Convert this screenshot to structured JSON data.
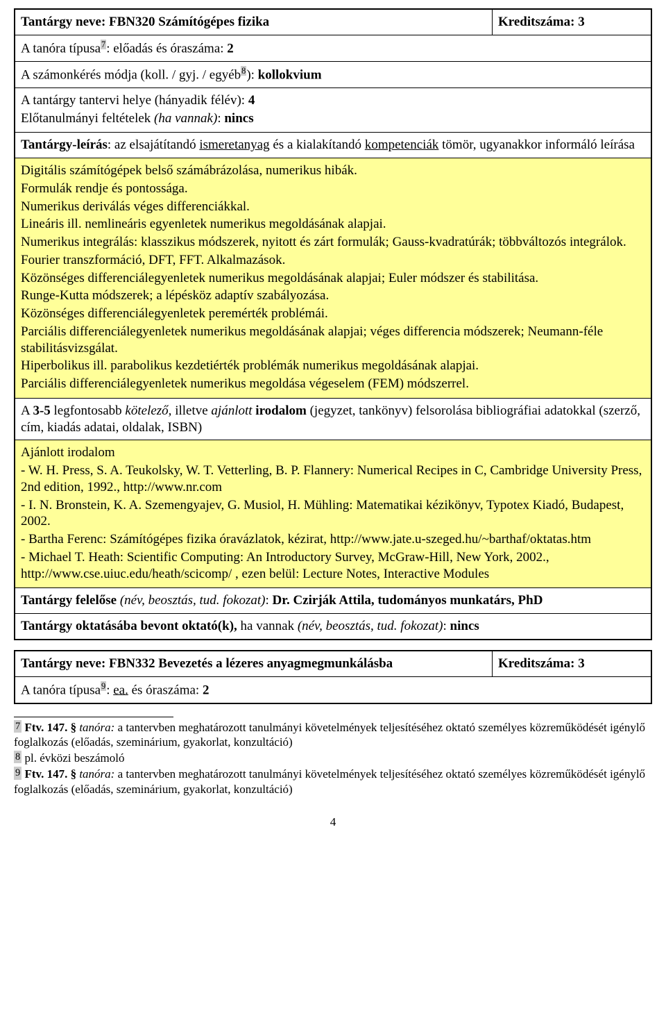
{
  "course1": {
    "name_label": "Tantárgy neve: ",
    "name_value": "FBN320 Számítógépes fizika",
    "credit_label": "Kreditszáma: ",
    "credit_value": "3",
    "lesson_type_prefix": "A tanóra típusa",
    "lesson_type_sup": "7",
    "lesson_type_after": ": előadás és óraszáma: ",
    "lesson_hours": "2",
    "exam_prefix": "A számonkérés módja (koll. / gyj. / egyéb",
    "exam_sup": "8",
    "exam_after": "): ",
    "exam_value": "kollokvium",
    "place_prefix": "A tantárgy tantervi helye (hányadik félév): ",
    "place_value": "4",
    "prereq_prefix": "Előtanulmányi feltételek ",
    "prereq_italic": "(ha vannak)",
    "prereq_after": ": ",
    "prereq_value": "nincs",
    "desc_label": "Tantárgy-leírás",
    "desc_after1": ": az elsajátítandó ",
    "desc_u1": "ismeretanyag",
    "desc_after2": " és a kialakítandó ",
    "desc_u2": "kompetenciák",
    "desc_after3": " tömör, ugyanakkor informáló leírása",
    "content": [
      "Digitális számítógépek belső számábrázolása, numerikus hibák.",
      "Formulák rendje és pontossága.",
      "Numerikus deriválás véges differenciákkal.",
      "Lineáris ill. nemlineáris egyenletek numerikus megoldásának alapjai.",
      "Numerikus integrálás: klasszikus módszerek, nyitott és zárt formulák; Gauss-kvadratúrák; többváltozós integrálok.",
      "Fourier transzformáció, DFT, FFT. Alkalmazások.",
      "Közönséges differenciálegyenletek numerikus megoldásának alapjai; Euler módszer és stabilitása.",
      "Runge-Kutta módszerek; a lépésköz adaptív szabályozása.",
      "Közönséges differenciálegyenletek peremérték problémái.",
      "Parciális differenciálegyenletek numerikus megoldásának alapjai; véges differencia módszerek; Neumann-féle stabilitásvizsgálat.",
      "Hiperbolikus ill. parabolikus kezdetiérték problémák numerikus megoldásának alapjai.",
      "Parciális differenciálegyenletek numerikus megoldása végeselem (FEM) módszerrel."
    ],
    "lit_label_prefix": "A ",
    "lit_label_bold": "3-5",
    "lit_label_after1": " legfontosabb ",
    "lit_label_it1": "kötelező,",
    "lit_label_after2": " illetve ",
    "lit_label_it2": "ajánlott",
    "lit_label_after3": " ",
    "lit_label_bold2": "irodalom",
    "lit_label_after4": " (jegyzet, tankönyv) felsorolása bibliográfiai adatokkal (szerző, cím, kiadás adatai, oldalak, ISBN)",
    "lit_heading": "Ajánlott irodalom",
    "literature": [
      "- W. H. Press, S. A. Teukolsky, W. T. Vetterling, B. P. Flannery: Numerical Recipes in C, Cambridge University Press, 2nd edition, 1992., http://www.nr.com",
      "- I. N. Bronstein, K. A. Szemengyajev, G. Musiol, H. Mühling: Matematikai kézikönyv, Typotex Kiadó, Budapest, 2002.",
      "- Bartha Ferenc: Számítógépes fizika óravázlatok, kézirat, http://www.jate.u-szeged.hu/~barthaf/oktatas.htm",
      "- Michael T. Heath: Scientific Computing: An Introductory Survey, McGraw-Hill, New York, 2002., http://www.cse.uiuc.edu/heath/scicomp/ , ezen belül: Lecture Notes, Interactive Modules"
    ],
    "responsible_label": "Tantárgy felelőse ",
    "responsible_italic": "(név, beosztás, tud. fokozat)",
    "responsible_after": ": ",
    "responsible_value": "Dr. Czirják Attila, tudományos munkatárs, PhD",
    "teachers_label": "Tantárgy oktatásába bevont oktató(k), ",
    "teachers_after": "ha vannak ",
    "teachers_italic": "(név, beosztás, tud. fokozat)",
    "teachers_after2": ": ",
    "teachers_value": "nincs"
  },
  "course2": {
    "name_label": "Tantárgy neve: ",
    "name_value": "FBN332 Bevezetés a lézeres anyagmegmunkálásba",
    "credit_label": "Kreditszáma: ",
    "credit_value": "3",
    "lesson_type_prefix": "A tanóra típusa",
    "lesson_type_sup": "9",
    "lesson_type_after": ": ",
    "lesson_type_underline": "ea.",
    "lesson_type_after2": " és óraszáma: ",
    "lesson_hours": "2"
  },
  "footnotes": {
    "f7_num": "7",
    "f7_bold": "Ftv. 147. §",
    "f7_italic": "tanóra:",
    "f7_text": " a tantervben meghatározott tanulmányi követelmények teljesítéséhez oktató személyes közreműködését igénylő foglalkozás (előadás, szeminárium, gyakorlat, konzultáció)",
    "f8_num": "8",
    "f8_text": " pl. évközi beszámoló",
    "f9_num": "9",
    "f9_bold": "Ftv. 147. §",
    "f9_italic": "tanóra:",
    "f9_text": " a tantervben meghatározott tanulmányi követelmények teljesítéséhez oktató személyes közreműködését igénylő foglalkozás (előadás, szeminárium, gyakorlat, konzultáció)"
  },
  "page_number": "4"
}
